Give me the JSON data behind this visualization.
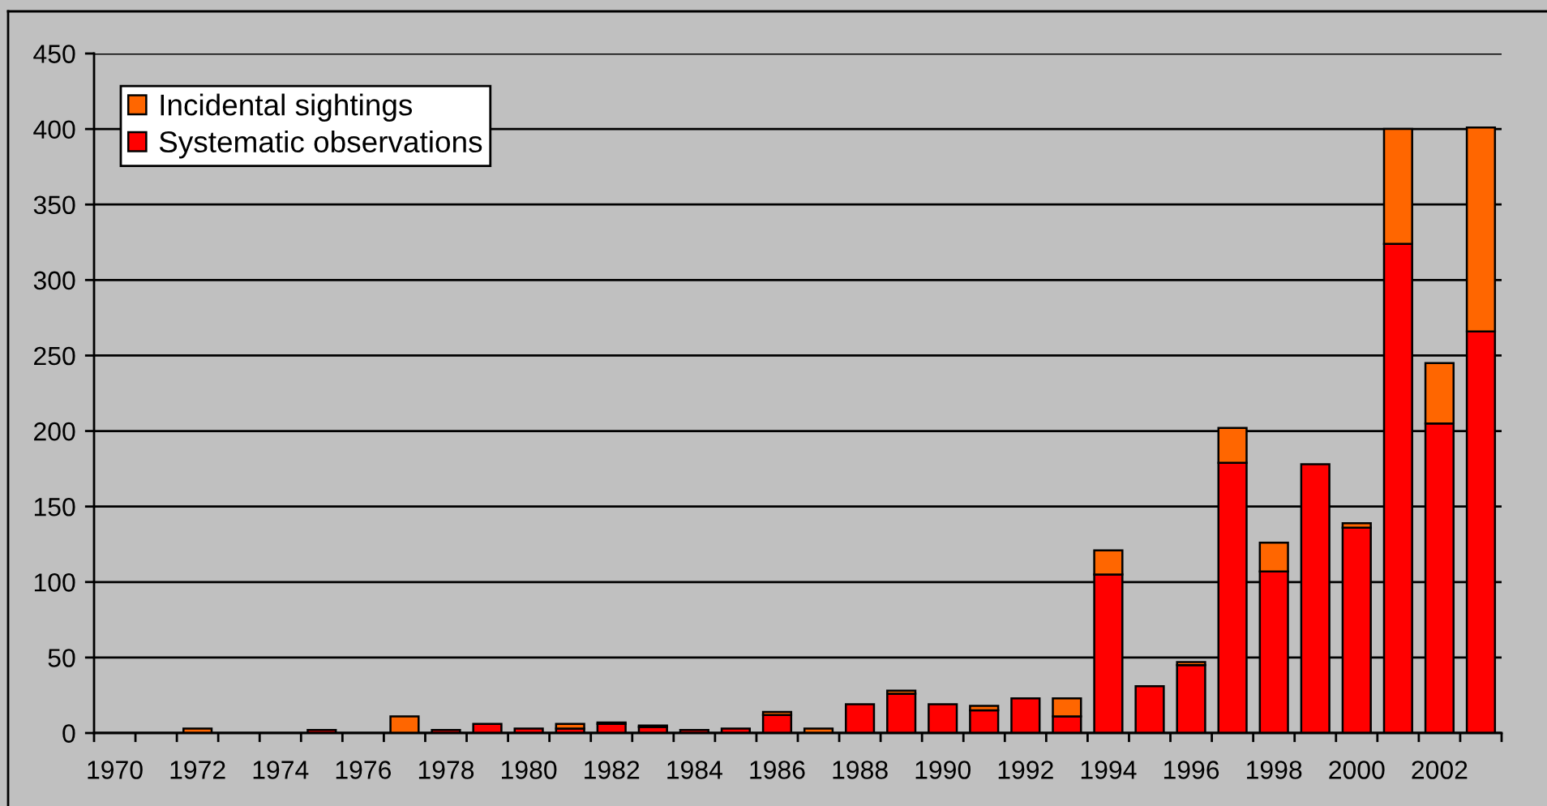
{
  "chart_data": {
    "type": "bar",
    "stacked": true,
    "categories": [
      "1970",
      null,
      "1972",
      null,
      "1974",
      null,
      "1976",
      null,
      "1978",
      null,
      "1980",
      null,
      "1982",
      null,
      "1984",
      null,
      "1986",
      null,
      "1988",
      null,
      "1990",
      null,
      "1992",
      null,
      "1994",
      null,
      "1996",
      null,
      "1998",
      null,
      "2000",
      null,
      "2002",
      null
    ],
    "series": [
      {
        "name": "Systematic observations",
        "color": "#ff0000",
        "values": [
          null,
          null,
          null,
          null,
          null,
          2,
          null,
          null,
          2,
          6,
          3,
          3,
          6,
          4,
          2,
          3,
          12,
          null,
          19,
          26,
          19,
          15,
          23,
          11,
          105,
          31,
          45,
          179,
          107,
          178,
          136,
          324,
          205,
          266
        ]
      },
      {
        "name": "Incidental sightings",
        "color": "#ff6600",
        "values": [
          null,
          null,
          3,
          null,
          null,
          null,
          null,
          11,
          null,
          null,
          null,
          3,
          1,
          1,
          null,
          null,
          2,
          3,
          null,
          2,
          null,
          3,
          null,
          12,
          16,
          null,
          2,
          23,
          19,
          null,
          3,
          76,
          40,
          135
        ]
      }
    ],
    "ylim": [
      0,
      450
    ],
    "yticks": [
      0,
      50,
      100,
      150,
      200,
      250,
      300,
      350,
      400,
      450
    ],
    "grid": "y",
    "legend": "top left"
  }
}
